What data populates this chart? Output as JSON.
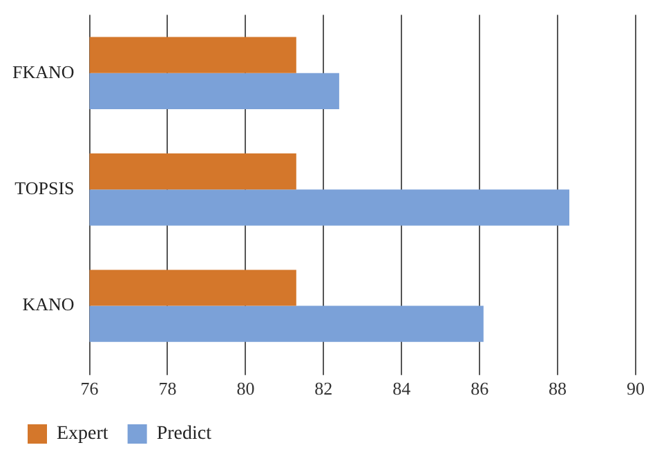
{
  "chart_data": {
    "type": "bar",
    "orientation": "horizontal",
    "categories": [
      "FKANO",
      "TOPSIS",
      "KANO"
    ],
    "series": [
      {
        "name": "Expert",
        "color": "#d4772b",
        "values": [
          81.3,
          81.3,
          81.3
        ]
      },
      {
        "name": "Predict",
        "color": "#7ba1d8",
        "values": [
          82.4,
          88.3,
          86.1
        ]
      }
    ],
    "xlim": [
      76,
      90
    ],
    "xticks": [
      76,
      78,
      80,
      82,
      84,
      86,
      88,
      90
    ],
    "grid": "x",
    "legend": "bottom left"
  }
}
